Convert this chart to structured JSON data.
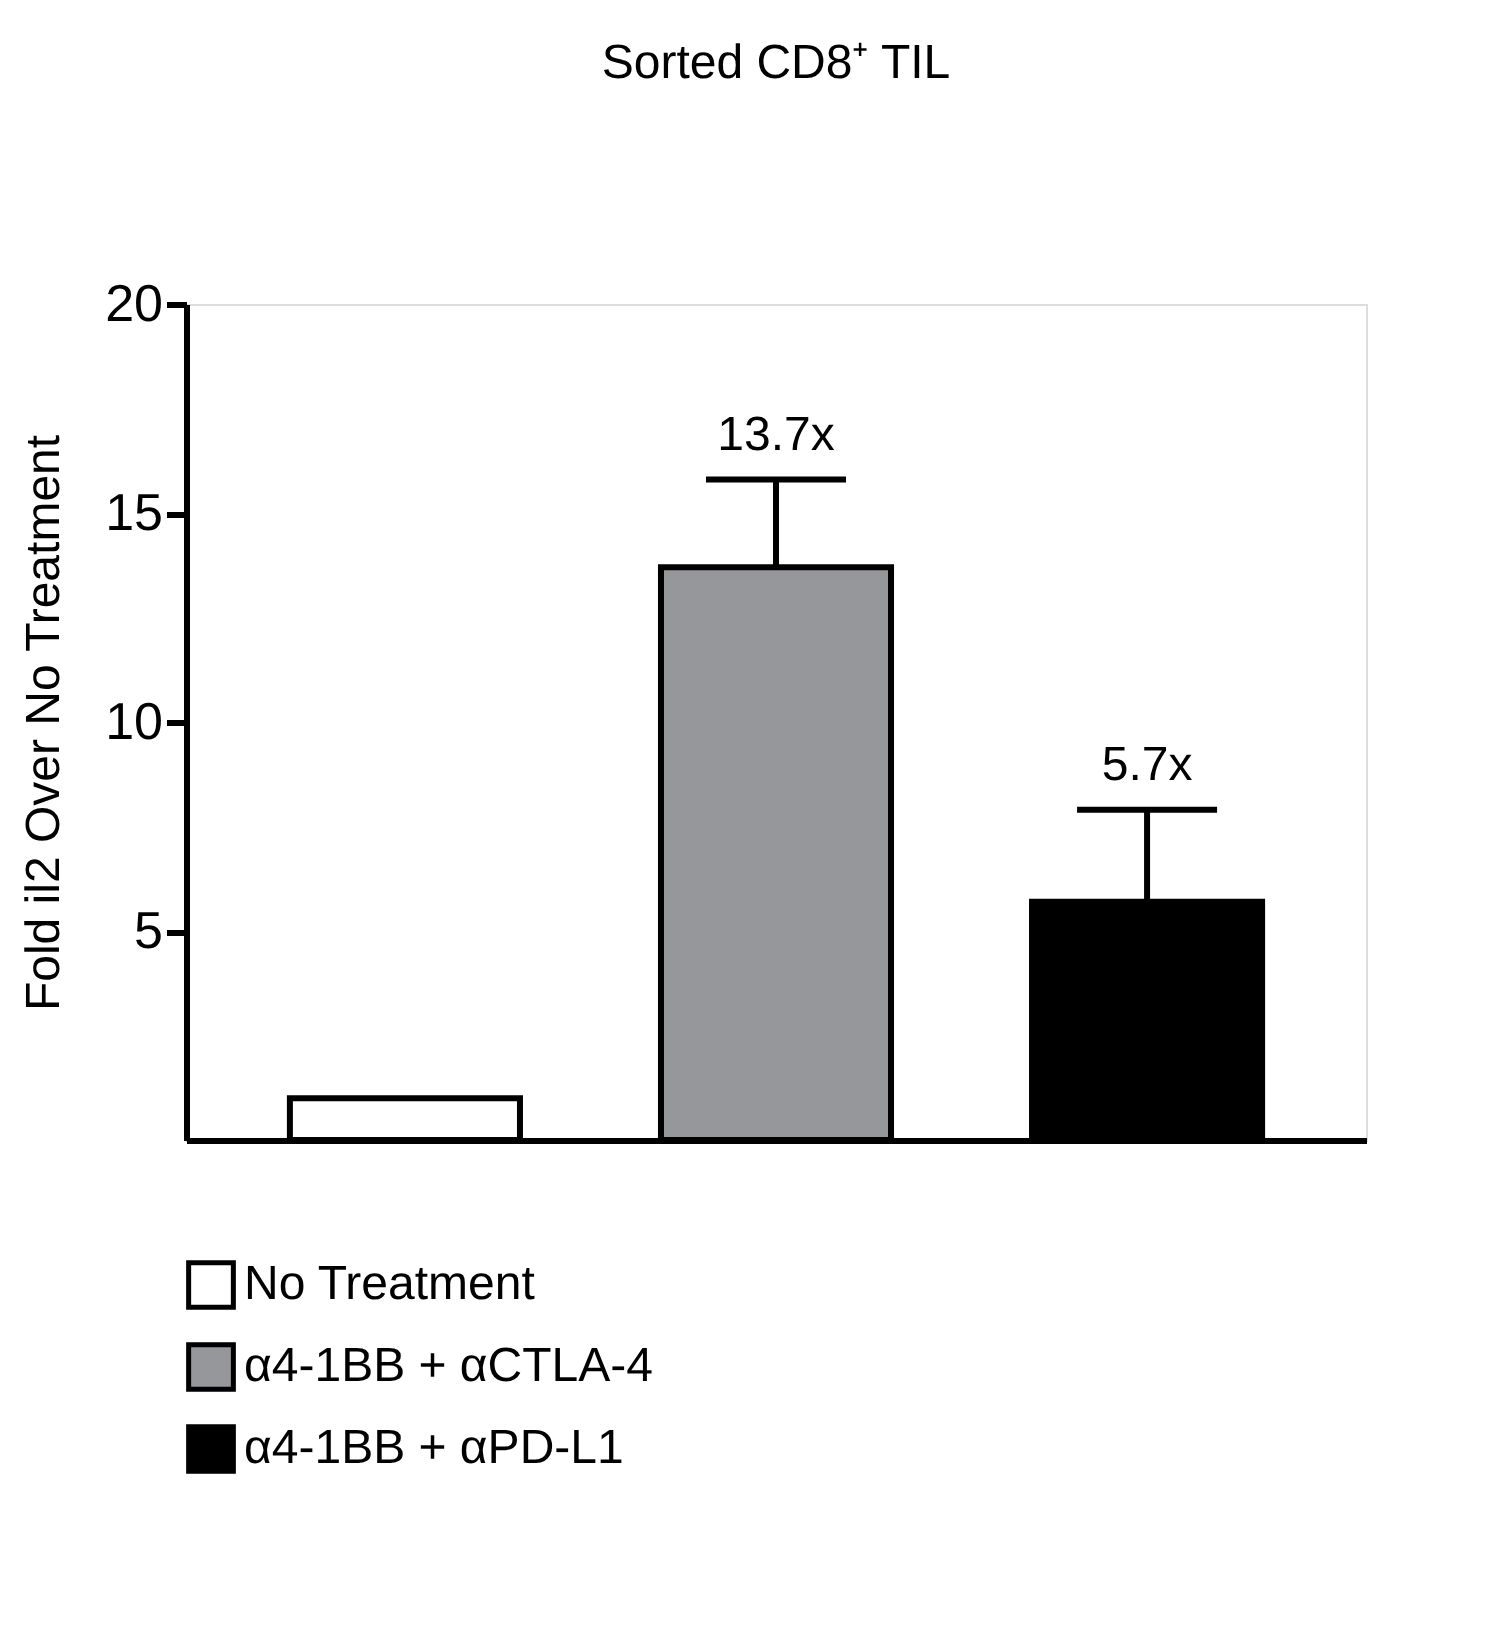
{
  "chart_data": {
    "type": "bar",
    "title": "Sorted CD8⁺ TIL",
    "ylabel": "Fold il2 Over No Treatment",
    "categories": [
      null,
      null,
      null
    ],
    "series": [
      {
        "name": "No Treatment",
        "color": "#ffffff",
        "values": [
          1,
          null,
          null
        ]
      },
      {
        "name": "α4-1BB + αCTLA-4",
        "color": "#96979b",
        "values": [
          null,
          13.7,
          null
        ],
        "errors": [
          null,
          [
            13.7,
            15.8
          ],
          null
        ],
        "value_labels": [
          null,
          "13.7x",
          null
        ]
      },
      {
        "name": "α4-1BB + αPD-L1",
        "color": "#000000",
        "values": [
          null,
          null,
          5.7
        ],
        "errors": [
          null,
          null,
          [
            5.7,
            7.9
          ]
        ],
        "value_labels": [
          null,
          null,
          "5.7x"
        ]
      }
    ],
    "ylim": [
      0,
      20
    ],
    "yticks": [
      5,
      10,
      15,
      20
    ],
    "grid": false,
    "legend": "bottom",
    "tick_labels": "y"
  }
}
